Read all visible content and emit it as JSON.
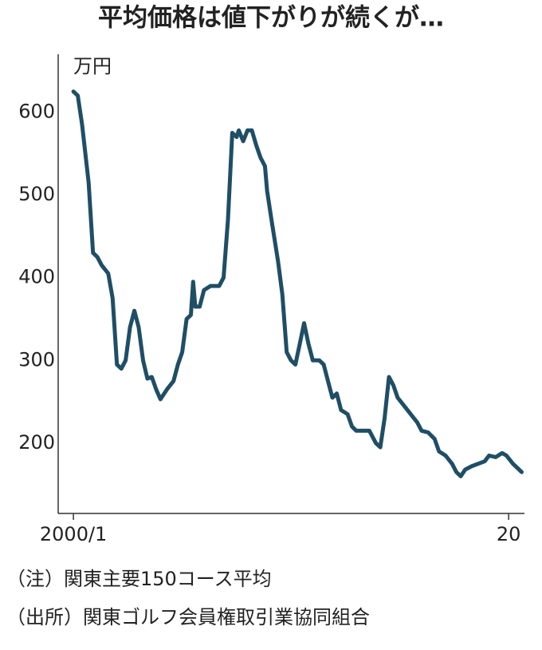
{
  "chart_data": {
    "type": "line",
    "title": "平均価格は値下がりが続くが…",
    "y_label": "万円",
    "x": [
      2000.0,
      2000.2,
      2000.4,
      2000.7,
      2000.9,
      2001.1,
      2001.3,
      2001.6,
      2001.8,
      2002.0,
      2002.2,
      2002.4,
      2002.6,
      2002.8,
      2003.0,
      2003.2,
      2003.4,
      2003.6,
      2003.8,
      2004.0,
      2004.3,
      2004.6,
      2004.8,
      2005.0,
      2005.2,
      2005.4,
      2005.5,
      2005.6,
      2005.8,
      2006.0,
      2006.3,
      2006.7,
      2006.9,
      2007.1,
      2007.3,
      2007.5,
      2007.6,
      2007.8,
      2008.0,
      2008.2,
      2008.4,
      2008.6,
      2008.8,
      2008.9,
      2009.1,
      2009.4,
      2009.6,
      2009.8,
      2010.0,
      2010.2,
      2010.4,
      2010.6,
      2010.8,
      2011.0,
      2011.3,
      2011.5,
      2011.7,
      2011.9,
      2012.1,
      2012.3,
      2012.6,
      2012.8,
      2013.0,
      2013.3,
      2013.6,
      2013.9,
      2014.1,
      2014.3,
      2014.5,
      2014.7,
      2014.9,
      2015.2,
      2015.5,
      2015.8,
      2016.0,
      2016.3,
      2016.6,
      2016.8,
      2017.1,
      2017.4,
      2017.6,
      2017.8,
      2018.0,
      2018.3,
      2018.6,
      2018.9,
      2019.1,
      2019.4,
      2019.7,
      2019.9,
      2020.2,
      2020.4,
      2020.6
    ],
    "series": [
      {
        "color": "#1f4e66",
        "values": [
          625,
          620,
          585,
          515,
          430,
          425,
          415,
          405,
          375,
          295,
          290,
          300,
          340,
          360,
          340,
          300,
          278,
          280,
          265,
          253,
          265,
          275,
          295,
          310,
          350,
          355,
          395,
          365,
          365,
          385,
          390,
          390,
          400,
          470,
          575,
          570,
          578,
          565,
          578,
          578,
          560,
          545,
          535,
          505,
          470,
          420,
          380,
          310,
          300,
          295,
          320,
          345,
          320,
          300,
          300,
          295,
          275,
          255,
          260,
          240,
          235,
          220,
          215,
          215,
          215,
          200,
          195,
          230,
          280,
          270,
          255,
          245,
          235,
          225,
          215,
          213,
          205,
          190,
          185,
          175,
          165,
          160,
          168,
          172,
          175,
          178,
          185,
          183,
          188,
          185,
          175,
          170,
          165
        ]
      }
    ],
    "xlim": [
      1999.3,
      2020.8
    ],
    "xticks": [
      {
        "value": 2000,
        "label": "2000/1"
      },
      {
        "value": 2020,
        "label": "20"
      }
    ],
    "ylim": [
      115,
      670
    ],
    "yticks": [
      200,
      300,
      400,
      500,
      600
    ],
    "notes": [
      "（注）関東主要150コース平均",
      "（出所）関東ゴルフ会員権取引業協同組合"
    ]
  }
}
